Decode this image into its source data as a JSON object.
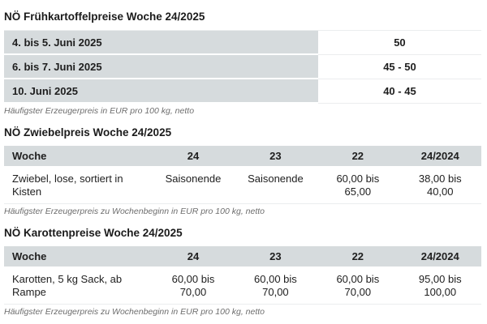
{
  "colors": {
    "header_cell_bg": "#d6dbdd",
    "text": "#1e1e1e",
    "footnote_text": "#6d6d6d",
    "row_border": "#ebedee",
    "background": "#ffffff"
  },
  "tables": [
    {
      "title": "NÖ Frühkartoffelpreise Woche 24/2025",
      "rows": [
        {
          "label": "4. bis 5. Juni 2025",
          "value": "50"
        },
        {
          "label": "6. bis 7. Juni 2025",
          "value": "45 - 50"
        },
        {
          "label": "10. Juni 2025",
          "value": "40 - 45"
        }
      ],
      "footnote": "Häufigster Erzeugerpreis in EUR pro 100 kg, netto"
    },
    {
      "title": "NÖ Zwiebelpreis Woche 24/2025",
      "columns": [
        "Woche",
        "24",
        "23",
        "22",
        "24/2024"
      ],
      "rows": [
        {
          "label": "Zwiebel, lose, sortiert in\nKisten",
          "values": [
            "Saisonende",
            "Saisonende",
            "60,00 bis\n65,00",
            "38,00 bis\n40,00"
          ]
        }
      ],
      "footnote": "Häufigster Erzeugerpreis zu Wochenbeginn in EUR pro 100 kg, netto"
    },
    {
      "title": "NÖ Karottenpreise Woche 24/2025",
      "columns": [
        "Woche",
        "24",
        "23",
        "22",
        "24/2024"
      ],
      "rows": [
        {
          "label": "Karotten, 5 kg Sack, ab\nRampe",
          "values": [
            "60,00 bis\n70,00",
            "60,00 bis\n70,00",
            "60,00 bis\n70,00",
            "95,00 bis\n100,00"
          ]
        }
      ],
      "footnote": "Häufigster Erzeugerpreis zu Wochenbeginn in EUR pro 100 kg, netto"
    }
  ]
}
